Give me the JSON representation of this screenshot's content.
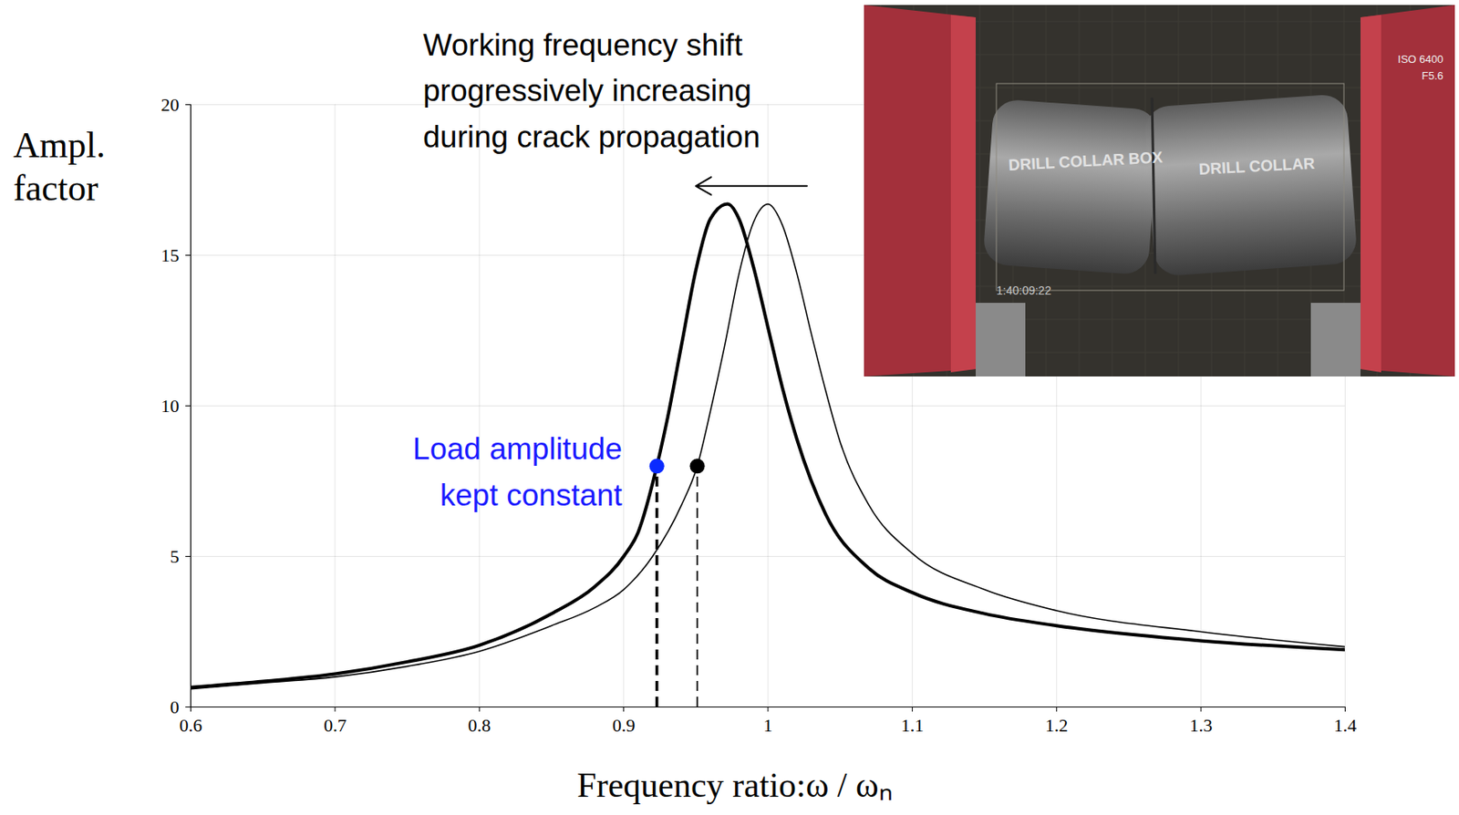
{
  "chart_data": {
    "type": "line",
    "x_label": "Frequency ratio:ω / ωₙ",
    "y_label": "Ampl. factor",
    "xlim": [
      0.6,
      1.4
    ],
    "xticks": [
      0.6,
      0.7,
      0.8,
      0.9,
      1,
      1.1,
      1.2,
      1.3,
      1.4
    ],
    "ylim": [
      0,
      20
    ],
    "yticks": [
      0,
      5,
      10,
      15,
      20
    ],
    "grid": true,
    "series": [
      {
        "color": "#000000",
        "line_style": "solid",
        "x": [
          0.6,
          0.65,
          0.7,
          0.75,
          0.8,
          0.85,
          0.88,
          0.9,
          0.91,
          0.923,
          0.93,
          0.94,
          0.95,
          0.96,
          0.972,
          0.98,
          0.99,
          1.0,
          1.01,
          1.02,
          1.04,
          1.07,
          1.1,
          1.15,
          1.2,
          1.3,
          1.4
        ],
        "values": [
          0.65,
          0.85,
          1.1,
          1.5,
          2.05,
          3.1,
          4.0,
          5.0,
          5.8,
          8.0,
          9.5,
          12.0,
          14.5,
          16.2,
          16.7,
          16.2,
          14.6,
          12.6,
          10.6,
          8.9,
          6.4,
          4.6,
          3.8,
          3.1,
          2.7,
          2.2,
          1.9
        ]
      },
      {
        "color": "#000000",
        "line_style": "solid",
        "x": [
          0.6,
          0.65,
          0.7,
          0.75,
          0.8,
          0.85,
          0.88,
          0.9,
          0.92,
          0.94,
          0.951,
          0.96,
          0.97,
          0.98,
          0.99,
          1.0,
          1.01,
          1.02,
          1.03,
          1.04,
          1.05,
          1.07,
          1.1,
          1.15,
          1.2,
          1.3,
          1.4
        ],
        "values": [
          0.6,
          0.8,
          1.0,
          1.35,
          1.85,
          2.7,
          3.3,
          3.9,
          5.0,
          6.7,
          8.0,
          9.8,
          12.0,
          14.4,
          16.1,
          16.7,
          16.0,
          14.4,
          12.4,
          10.5,
          8.8,
          6.7,
          5.1,
          3.9,
          3.2,
          2.5,
          2.0
        ]
      }
    ],
    "points": [
      {
        "x": 0.923,
        "y": 8.0,
        "color": "#0a2bff",
        "line_style": "dashed"
      },
      {
        "x": 0.951,
        "y": 8.0,
        "color": "#000000",
        "line_style": "dashed"
      }
    ],
    "annotations": [
      {
        "lines": [
          "Working frequency shift",
          "progressively increasing",
          "during crack propagation"
        ],
        "x": 0.761,
        "y": 20.6,
        "color": "#000000"
      },
      {
        "lines": [
          "Load amplitude",
          "kept constant"
        ],
        "x": 0.899,
        "y": 7.95,
        "color": "#1a1aff"
      }
    ],
    "arrow": {
      "x1": 1.027,
      "x2": 0.95,
      "y": 17.3
    }
  },
  "inset": {
    "labels": [
      "DRILL COLLAR BOX",
      "DRILL COLLAR",
      "ISO 6400",
      "F5.6",
      "1:40:09:22"
    ]
  }
}
